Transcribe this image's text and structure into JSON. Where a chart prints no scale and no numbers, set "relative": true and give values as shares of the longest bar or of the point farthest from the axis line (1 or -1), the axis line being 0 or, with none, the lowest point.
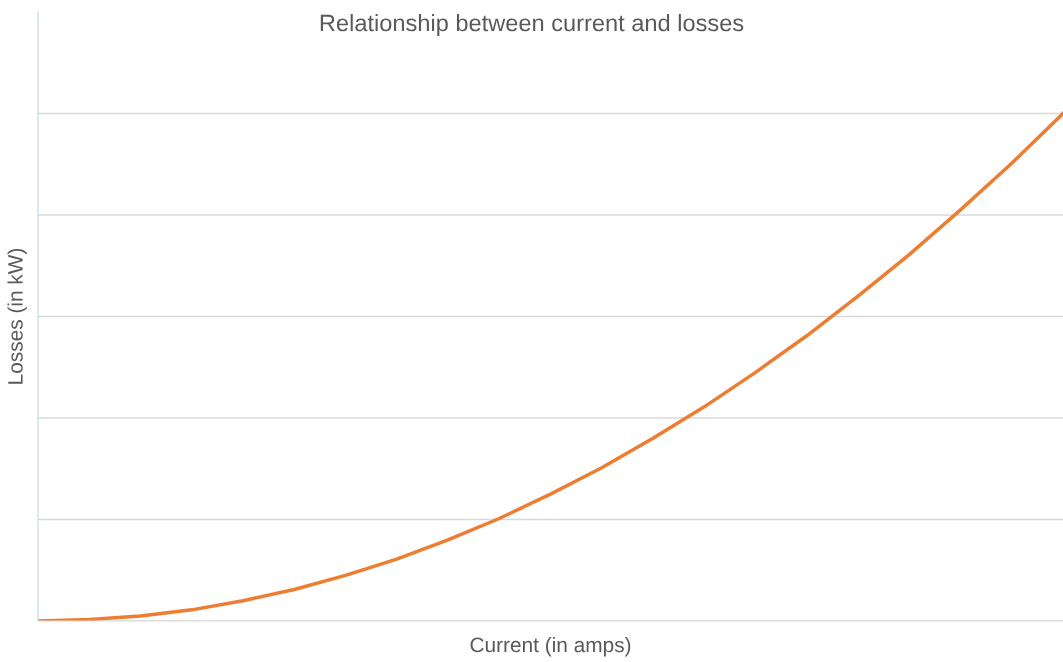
{
  "chart_data": {
    "type": "line",
    "title": "Relationship between current and losses",
    "xlabel": "Current (in amps)",
    "ylabel": "Losses (in kW)",
    "relative": true,
    "grid": "y",
    "legend": false,
    "marker": "none",
    "line_style": "solid",
    "categories": [
      null,
      null,
      null,
      null,
      null,
      null,
      null,
      null,
      null,
      null,
      null,
      null,
      null,
      null,
      null,
      null,
      null,
      null,
      null,
      null,
      null
    ],
    "series": [
      {
        "color": "#ed7d31",
        "values": [
          0,
          0.003,
          0.01,
          0.022,
          0.04,
          0.062,
          0.09,
          0.122,
          0.16,
          0.202,
          0.25,
          0.302,
          0.36,
          0.422,
          0.49,
          0.562,
          0.64,
          0.722,
          0.81,
          0.902,
          1
        ]
      }
    ]
  }
}
